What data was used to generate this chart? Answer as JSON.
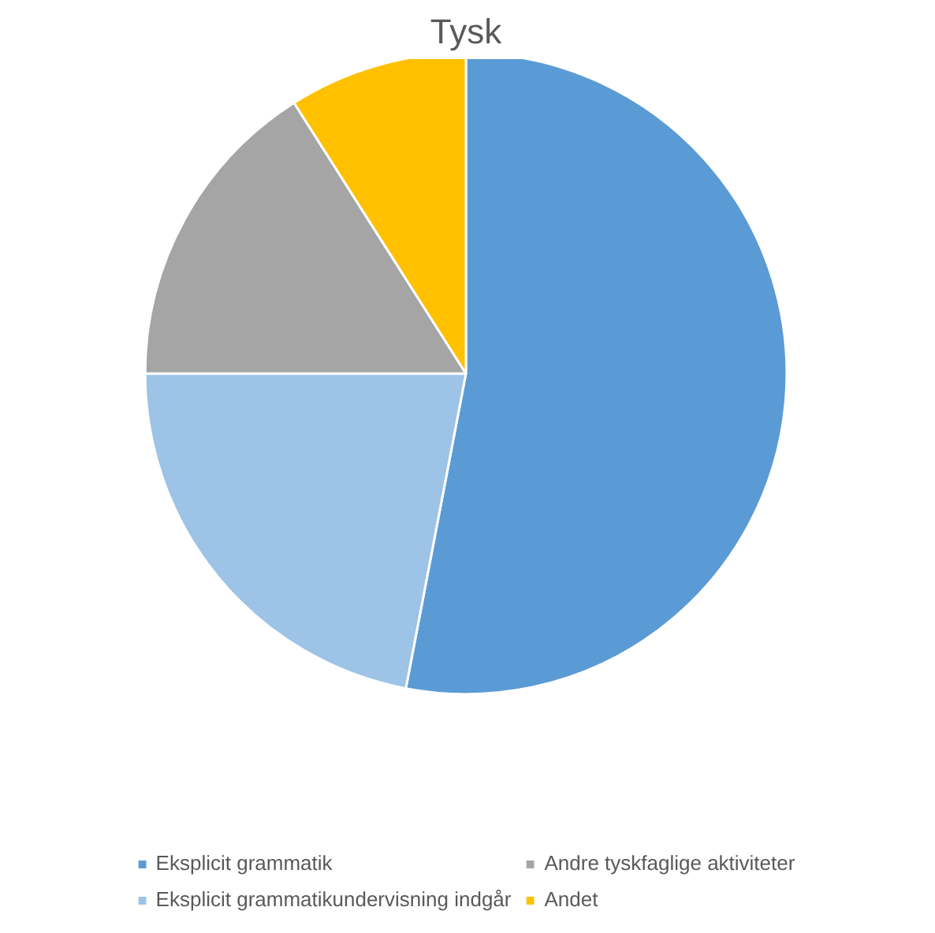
{
  "chart_data": {
    "type": "pie",
    "title": "Tysk",
    "categories": [
      "Eksplicit grammatik",
      "Eksplicit grammatikundervisning indgår",
      "Andre tyskfaglige aktiviteter",
      "Andet"
    ],
    "values": [
      53,
      22,
      16,
      9
    ],
    "colors": [
      "#5b9bd5",
      "#9dc3e6",
      "#a5a5a5",
      "#ffc000"
    ],
    "legend": "bottom"
  }
}
